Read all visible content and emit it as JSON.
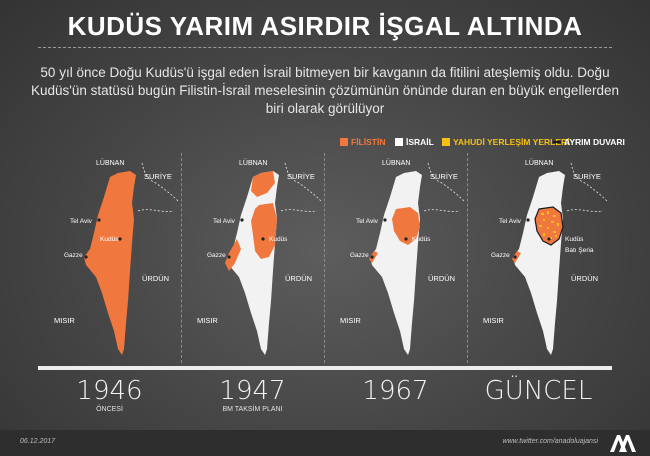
{
  "title": "KUDÜS YARIM ASIRDIR İŞGAL ALTINDA",
  "subtitle": "50 yıl önce Doğu Kudüs'ü işgal eden İsrail bitmeyen bir kavganın da fitilini ateşlemiş oldu. Doğu Kudüs'ün statüsü bugün Filistin-İsrail meselesinin çözümünün önünde duran en büyük engellerden biri olarak görülüyor",
  "legend": [
    {
      "label": "FİLİSTİN",
      "color": "#f0783e"
    },
    {
      "label": "İSRAİL",
      "color": "#ffffff"
    },
    {
      "label": "YAHUDİ YERLEŞİM YERLERİ",
      "color": "#f5c211"
    },
    {
      "label": "AYRIM DUVARI",
      "color": "#1a1a1a"
    }
  ],
  "colors": {
    "palestine": "#f0783e",
    "israel": "#f2f2f2",
    "settlement": "#f5c211",
    "wall": "#1a1a1a"
  },
  "panels": [
    {
      "year": "1946",
      "note": "ÖNCESİ",
      "labels": {
        "lebanon": "LÜBNAN",
        "syria": "SURİYE",
        "telaviv": "Tel Aviv",
        "jerusalem": "Kudüs",
        "gaza": "Gazze",
        "jordan": "ÜRDÜN",
        "egypt": "MISIR"
      }
    },
    {
      "year": "1947",
      "note": "BM TAKSİM PLANI",
      "labels": {
        "lebanon": "LÜBNAN",
        "syria": "SURİYE",
        "telaviv": "Tel Aviv",
        "jerusalem": "Kudüs",
        "gaza": "Gazze",
        "jordan": "ÜRDÜN",
        "egypt": "MISIR"
      }
    },
    {
      "year": "1967",
      "note": "",
      "labels": {
        "lebanon": "LÜBNAN",
        "syria": "SURİYE",
        "telaviv": "Tel Aviv",
        "jerusalem": "Kudüs",
        "gaza": "Gazze",
        "jordan": "ÜRDÜN",
        "egypt": "MISIR"
      }
    },
    {
      "year": "GÜNCEL",
      "note": "",
      "labels": {
        "lebanon": "LÜBNAN",
        "syria": "SURİYE",
        "telaviv": "Tel Aviv",
        "jerusalem": "Kudüs",
        "westbank": "Batı Şeria",
        "gaza": "Gazze",
        "jordan": "ÜRDÜN",
        "egypt": "MISIR"
      }
    }
  ],
  "footer": {
    "date": "06.12.2017",
    "website": "www.twitter.com/anadoluajansi",
    "logo_icon": "aa-logo-icon"
  }
}
